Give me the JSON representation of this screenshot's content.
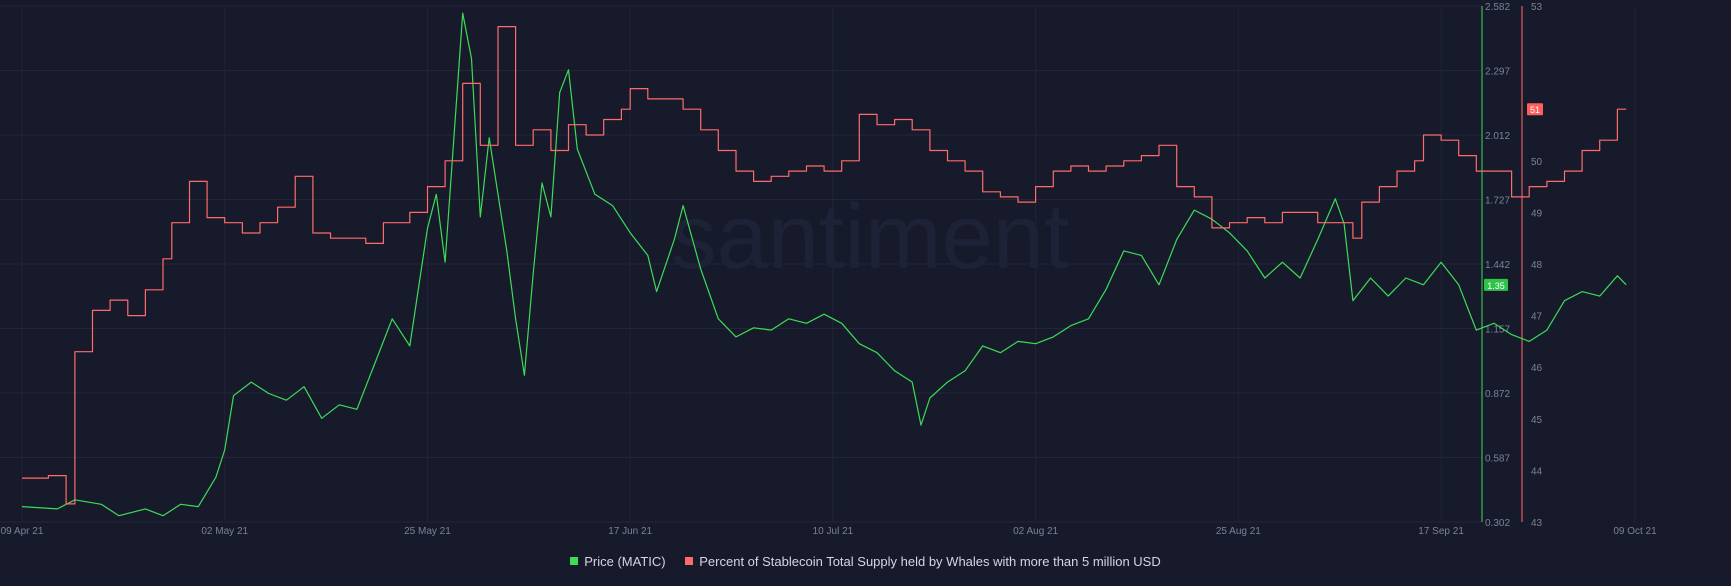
{
  "watermark": "santiment",
  "chart_data": {
    "type": "line",
    "x_labels": [
      "09 Apr 21",
      "02 May 21",
      "25 May 21",
      "17 Jun 21",
      "10 Jul 21",
      "02 Aug 21",
      "25 Aug 21",
      "17 Sep 21",
      "09 Oct 21"
    ],
    "x_range": [
      "2021-04-09",
      "2021-10-09"
    ],
    "y_left": {
      "ticks": [
        "2.582",
        "2.297",
        "2.012",
        "1.727",
        "1.442",
        "1.157",
        "0.872",
        "0.587",
        "0.302"
      ],
      "ylim": [
        0.302,
        2.582
      ]
    },
    "y_right": {
      "ticks": [
        "53",
        "51",
        "50",
        "49",
        "48",
        "47",
        "46",
        "45",
        "44",
        "43"
      ],
      "ylim": [
        43,
        53
      ]
    },
    "current_values": {
      "price": "1.35",
      "percent": "51"
    },
    "grid": true,
    "legend_position": "bottom",
    "series": [
      {
        "name": "Price (MATIC)",
        "axis": "left",
        "color": "#3ddc55",
        "points": [
          [
            "2021-04-09",
            0.37
          ],
          [
            "2021-04-13",
            0.36
          ],
          [
            "2021-04-15",
            0.4
          ],
          [
            "2021-04-18",
            0.38
          ],
          [
            "2021-04-20",
            0.33
          ],
          [
            "2021-04-23",
            0.36
          ],
          [
            "2021-04-25",
            0.33
          ],
          [
            "2021-04-27",
            0.38
          ],
          [
            "2021-04-29",
            0.37
          ],
          [
            "2021-05-01",
            0.5
          ],
          [
            "2021-05-02",
            0.62
          ],
          [
            "2021-05-03",
            0.86
          ],
          [
            "2021-05-05",
            0.92
          ],
          [
            "2021-05-07",
            0.87
          ],
          [
            "2021-05-09",
            0.84
          ],
          [
            "2021-05-11",
            0.9
          ],
          [
            "2021-05-13",
            0.76
          ],
          [
            "2021-05-15",
            0.82
          ],
          [
            "2021-05-17",
            0.8
          ],
          [
            "2021-05-19",
            1.0
          ],
          [
            "2021-05-21",
            1.2
          ],
          [
            "2021-05-23",
            1.08
          ],
          [
            "2021-05-25",
            1.6
          ],
          [
            "2021-05-26",
            1.75
          ],
          [
            "2021-05-27",
            1.45
          ],
          [
            "2021-05-28",
            2.0
          ],
          [
            "2021-05-29",
            2.55
          ],
          [
            "2021-05-30",
            2.35
          ],
          [
            "2021-05-31",
            1.65
          ],
          [
            "2021-06-01",
            2.0
          ],
          [
            "2021-06-02",
            1.75
          ],
          [
            "2021-06-03",
            1.5
          ],
          [
            "2021-06-04",
            1.2
          ],
          [
            "2021-06-05",
            0.95
          ],
          [
            "2021-06-06",
            1.4
          ],
          [
            "2021-06-07",
            1.8
          ],
          [
            "2021-06-08",
            1.65
          ],
          [
            "2021-06-09",
            2.2
          ],
          [
            "2021-06-10",
            2.3
          ],
          [
            "2021-06-11",
            1.95
          ],
          [
            "2021-06-12",
            1.85
          ],
          [
            "2021-06-13",
            1.75
          ],
          [
            "2021-06-15",
            1.7
          ],
          [
            "2021-06-17",
            1.58
          ],
          [
            "2021-06-19",
            1.48
          ],
          [
            "2021-06-20",
            1.32
          ],
          [
            "2021-06-22",
            1.55
          ],
          [
            "2021-06-23",
            1.7
          ],
          [
            "2021-06-25",
            1.42
          ],
          [
            "2021-06-27",
            1.2
          ],
          [
            "2021-06-29",
            1.12
          ],
          [
            "2021-07-01",
            1.16
          ],
          [
            "2021-07-03",
            1.15
          ],
          [
            "2021-07-05",
            1.2
          ],
          [
            "2021-07-07",
            1.18
          ],
          [
            "2021-07-09",
            1.22
          ],
          [
            "2021-07-11",
            1.18
          ],
          [
            "2021-07-13",
            1.09
          ],
          [
            "2021-07-15",
            1.05
          ],
          [
            "2021-07-17",
            0.97
          ],
          [
            "2021-07-19",
            0.92
          ],
          [
            "2021-07-20",
            0.73
          ],
          [
            "2021-07-21",
            0.85
          ],
          [
            "2021-07-23",
            0.92
          ],
          [
            "2021-07-25",
            0.97
          ],
          [
            "2021-07-27",
            1.08
          ],
          [
            "2021-07-29",
            1.05
          ],
          [
            "2021-07-31",
            1.1
          ],
          [
            "2021-08-02",
            1.09
          ],
          [
            "2021-08-04",
            1.12
          ],
          [
            "2021-08-06",
            1.17
          ],
          [
            "2021-08-08",
            1.2
          ],
          [
            "2021-08-10",
            1.33
          ],
          [
            "2021-08-12",
            1.5
          ],
          [
            "2021-08-14",
            1.48
          ],
          [
            "2021-08-16",
            1.35
          ],
          [
            "2021-08-18",
            1.55
          ],
          [
            "2021-08-20",
            1.68
          ],
          [
            "2021-08-22",
            1.64
          ],
          [
            "2021-08-24",
            1.58
          ],
          [
            "2021-08-26",
            1.5
          ],
          [
            "2021-08-28",
            1.38
          ],
          [
            "2021-08-30",
            1.45
          ],
          [
            "2021-09-01",
            1.38
          ],
          [
            "2021-09-03",
            1.55
          ],
          [
            "2021-09-05",
            1.73
          ],
          [
            "2021-09-06",
            1.62
          ],
          [
            "2021-09-07",
            1.28
          ],
          [
            "2021-09-09",
            1.38
          ],
          [
            "2021-09-11",
            1.3
          ],
          [
            "2021-09-13",
            1.38
          ],
          [
            "2021-09-15",
            1.35
          ],
          [
            "2021-09-17",
            1.45
          ],
          [
            "2021-09-19",
            1.35
          ],
          [
            "2021-09-21",
            1.15
          ],
          [
            "2021-09-23",
            1.18
          ],
          [
            "2021-09-25",
            1.13
          ],
          [
            "2021-09-27",
            1.1
          ],
          [
            "2021-09-29",
            1.15
          ],
          [
            "2021-10-01",
            1.28
          ],
          [
            "2021-10-03",
            1.32
          ],
          [
            "2021-10-05",
            1.3
          ],
          [
            "2021-10-07",
            1.39
          ],
          [
            "2021-10-08",
            1.35
          ]
        ]
      },
      {
        "name": "Percent of Stablecoin Total Supply held by Whales with more than 5 million USD",
        "axis": "right",
        "color": "#ff6b6b",
        "points": [
          [
            "2021-04-09",
            43.85
          ],
          [
            "2021-04-12",
            43.9
          ],
          [
            "2021-04-14",
            43.35
          ],
          [
            "2021-04-15",
            46.3
          ],
          [
            "2021-04-17",
            47.1
          ],
          [
            "2021-04-19",
            47.3
          ],
          [
            "2021-04-21",
            47.0
          ],
          [
            "2021-04-23",
            47.5
          ],
          [
            "2021-04-25",
            48.1
          ],
          [
            "2021-04-26",
            48.8
          ],
          [
            "2021-04-28",
            49.6
          ],
          [
            "2021-04-30",
            48.9
          ],
          [
            "2021-05-02",
            48.8
          ],
          [
            "2021-05-04",
            48.6
          ],
          [
            "2021-05-06",
            48.8
          ],
          [
            "2021-05-08",
            49.1
          ],
          [
            "2021-05-10",
            49.7
          ],
          [
            "2021-05-12",
            48.6
          ],
          [
            "2021-05-14",
            48.5
          ],
          [
            "2021-05-16",
            48.5
          ],
          [
            "2021-05-18",
            48.4
          ],
          [
            "2021-05-20",
            48.8
          ],
          [
            "2021-05-23",
            49.0
          ],
          [
            "2021-05-25",
            49.5
          ],
          [
            "2021-05-27",
            50.0
          ],
          [
            "2021-05-29",
            51.5
          ],
          [
            "2021-05-31",
            50.3
          ],
          [
            "2021-06-02",
            52.6
          ],
          [
            "2021-06-04",
            50.3
          ],
          [
            "2021-06-06",
            50.6
          ],
          [
            "2021-06-08",
            50.2
          ],
          [
            "2021-06-10",
            50.7
          ],
          [
            "2021-06-12",
            50.5
          ],
          [
            "2021-06-14",
            50.8
          ],
          [
            "2021-06-16",
            51.0
          ],
          [
            "2021-06-17",
            51.4
          ],
          [
            "2021-06-19",
            51.2
          ],
          [
            "2021-06-21",
            51.2
          ],
          [
            "2021-06-23",
            51.0
          ],
          [
            "2021-06-25",
            50.6
          ],
          [
            "2021-06-27",
            50.2
          ],
          [
            "2021-06-29",
            49.8
          ],
          [
            "2021-07-01",
            49.6
          ],
          [
            "2021-07-03",
            49.7
          ],
          [
            "2021-07-05",
            49.8
          ],
          [
            "2021-07-07",
            49.9
          ],
          [
            "2021-07-09",
            49.8
          ],
          [
            "2021-07-11",
            50.0
          ],
          [
            "2021-07-13",
            50.9
          ],
          [
            "2021-07-15",
            50.7
          ],
          [
            "2021-07-17",
            50.8
          ],
          [
            "2021-07-19",
            50.6
          ],
          [
            "2021-07-21",
            50.2
          ],
          [
            "2021-07-23",
            50.0
          ],
          [
            "2021-07-25",
            49.8
          ],
          [
            "2021-07-27",
            49.4
          ],
          [
            "2021-07-29",
            49.3
          ],
          [
            "2021-07-31",
            49.2
          ],
          [
            "2021-08-02",
            49.5
          ],
          [
            "2021-08-04",
            49.8
          ],
          [
            "2021-08-06",
            49.9
          ],
          [
            "2021-08-08",
            49.8
          ],
          [
            "2021-08-10",
            49.9
          ],
          [
            "2021-08-12",
            50.0
          ],
          [
            "2021-08-14",
            50.1
          ],
          [
            "2021-08-16",
            50.3
          ],
          [
            "2021-08-18",
            49.5
          ],
          [
            "2021-08-20",
            49.3
          ],
          [
            "2021-08-22",
            48.7
          ],
          [
            "2021-08-24",
            48.8
          ],
          [
            "2021-08-26",
            48.9
          ],
          [
            "2021-08-28",
            48.8
          ],
          [
            "2021-08-30",
            49.0
          ],
          [
            "2021-09-01",
            49.0
          ],
          [
            "2021-09-03",
            48.8
          ],
          [
            "2021-09-05",
            48.8
          ],
          [
            "2021-09-07",
            48.5
          ],
          [
            "2021-09-08",
            49.2
          ],
          [
            "2021-09-10",
            49.5
          ],
          [
            "2021-09-12",
            49.8
          ],
          [
            "2021-09-14",
            50.0
          ],
          [
            "2021-09-15",
            50.5
          ],
          [
            "2021-09-17",
            50.4
          ],
          [
            "2021-09-19",
            50.1
          ],
          [
            "2021-09-21",
            49.8
          ],
          [
            "2021-09-23",
            49.8
          ],
          [
            "2021-09-25",
            49.3
          ],
          [
            "2021-09-27",
            49.5
          ],
          [
            "2021-09-29",
            49.6
          ],
          [
            "2021-10-01",
            49.8
          ],
          [
            "2021-10-03",
            50.2
          ],
          [
            "2021-10-05",
            50.4
          ],
          [
            "2021-10-07",
            51.0
          ],
          [
            "2021-10-08",
            51.0
          ]
        ]
      }
    ]
  }
}
